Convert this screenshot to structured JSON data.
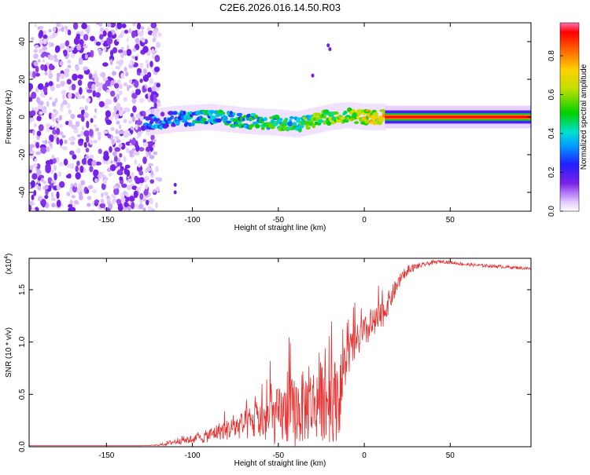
{
  "title": "C2E6.2026.016.14.50.R03",
  "chart_data": [
    {
      "type": "heatmap",
      "title": "C2E6.2026.016.14.50.R03",
      "xlabel": "Height of straight line (km)",
      "ylabel": "Frequency (Hz)",
      "xlim": [
        -195,
        97
      ],
      "ylim": [
        -50,
        50
      ],
      "xticks": [
        -150,
        -100,
        -50,
        0,
        50
      ],
      "xtick_labels": [
        "-150",
        "-100",
        "-50",
        "0",
        "50"
      ],
      "yticks": [
        -40,
        -20,
        0,
        20,
        40
      ],
      "ytick_labels": [
        "-40",
        "-20",
        "0",
        "20",
        "40"
      ],
      "colorbar": {
        "label": "Normalized spectral amplitude",
        "range": [
          0,
          0.97
        ],
        "ticks": [
          0.0,
          0.2,
          0.4,
          0.6,
          0.8
        ],
        "tick_labels": [
          "0.0",
          "0.2",
          "0.4",
          "0.6",
          "0.8"
        ]
      },
      "noise_region_x": [
        -195,
        -127
      ],
      "signal_track": {
        "x": [
          -127,
          -110,
          -90,
          -70,
          -50,
          -40,
          -30,
          -20,
          -10,
          0,
          10,
          12,
          97
        ],
        "y": [
          -3,
          -1,
          0,
          -2,
          -3,
          -4,
          -2,
          0,
          1,
          0,
          0,
          0,
          0
        ],
        "amplitude": [
          0.3,
          0.35,
          0.45,
          0.45,
          0.5,
          0.5,
          0.55,
          0.6,
          0.65,
          0.7,
          0.72,
          0.95,
          0.95
        ]
      }
    },
    {
      "type": "line",
      "xlabel": "Height of straight line (km)",
      "ylabel": "SNR (10 * v/v)",
      "scale_label": "(x10",
      "scale_exp": "4",
      "xlim": [
        -195,
        97
      ],
      "ylim": [
        0,
        1.8
      ],
      "xticks": [
        -150,
        -100,
        -50,
        0,
        50
      ],
      "xtick_labels": [
        "-150",
        "-100",
        "-50",
        "0",
        "50"
      ],
      "yticks": [
        0.0,
        0.5,
        1.0,
        1.5
      ],
      "ytick_labels": [
        "0.0",
        "0.5",
        "1.0",
        "1.5"
      ],
      "series": [
        {
          "name": "SNR",
          "color": "#e83030",
          "x": [
            -195,
            -130,
            -120,
            -115,
            -105,
            -100,
            -95,
            -90,
            -85,
            -80,
            -75,
            -70,
            -65,
            -60,
            -55,
            -50,
            -45,
            -40,
            -35,
            -30,
            -25,
            -20,
            -15,
            -10,
            -5,
            0,
            5,
            10,
            15,
            20,
            25,
            30,
            35,
            40,
            45,
            50,
            55,
            60,
            70,
            80,
            90,
            97
          ],
          "y": [
            0.01,
            0.01,
            0.015,
            0.03,
            0.07,
            0.09,
            0.1,
            0.14,
            0.18,
            0.2,
            0.23,
            0.26,
            0.3,
            0.33,
            0.36,
            0.4,
            0.45,
            0.48,
            0.52,
            0.55,
            0.6,
            0.62,
            0.6,
            0.95,
            1.05,
            1.15,
            1.22,
            1.3,
            1.45,
            1.6,
            1.68,
            1.72,
            1.74,
            1.76,
            1.77,
            1.76,
            1.75,
            1.74,
            1.73,
            1.72,
            1.71,
            1.7
          ],
          "spread": [
            0,
            0,
            0.005,
            0.02,
            0.04,
            0.06,
            0.07,
            0.1,
            0.12,
            0.14,
            0.16,
            0.2,
            0.25,
            0.3,
            0.35,
            0.4,
            0.45,
            0.5,
            0.5,
            0.5,
            0.55,
            0.6,
            0.55,
            0.3,
            0.25,
            0.22,
            0.22,
            0.2,
            0.15,
            0.1,
            0.05,
            0.03,
            0.02,
            0.02,
            0.015,
            0.015,
            0.015,
            0.015,
            0.015,
            0.015,
            0.015,
            0.015
          ]
        }
      ]
    }
  ]
}
